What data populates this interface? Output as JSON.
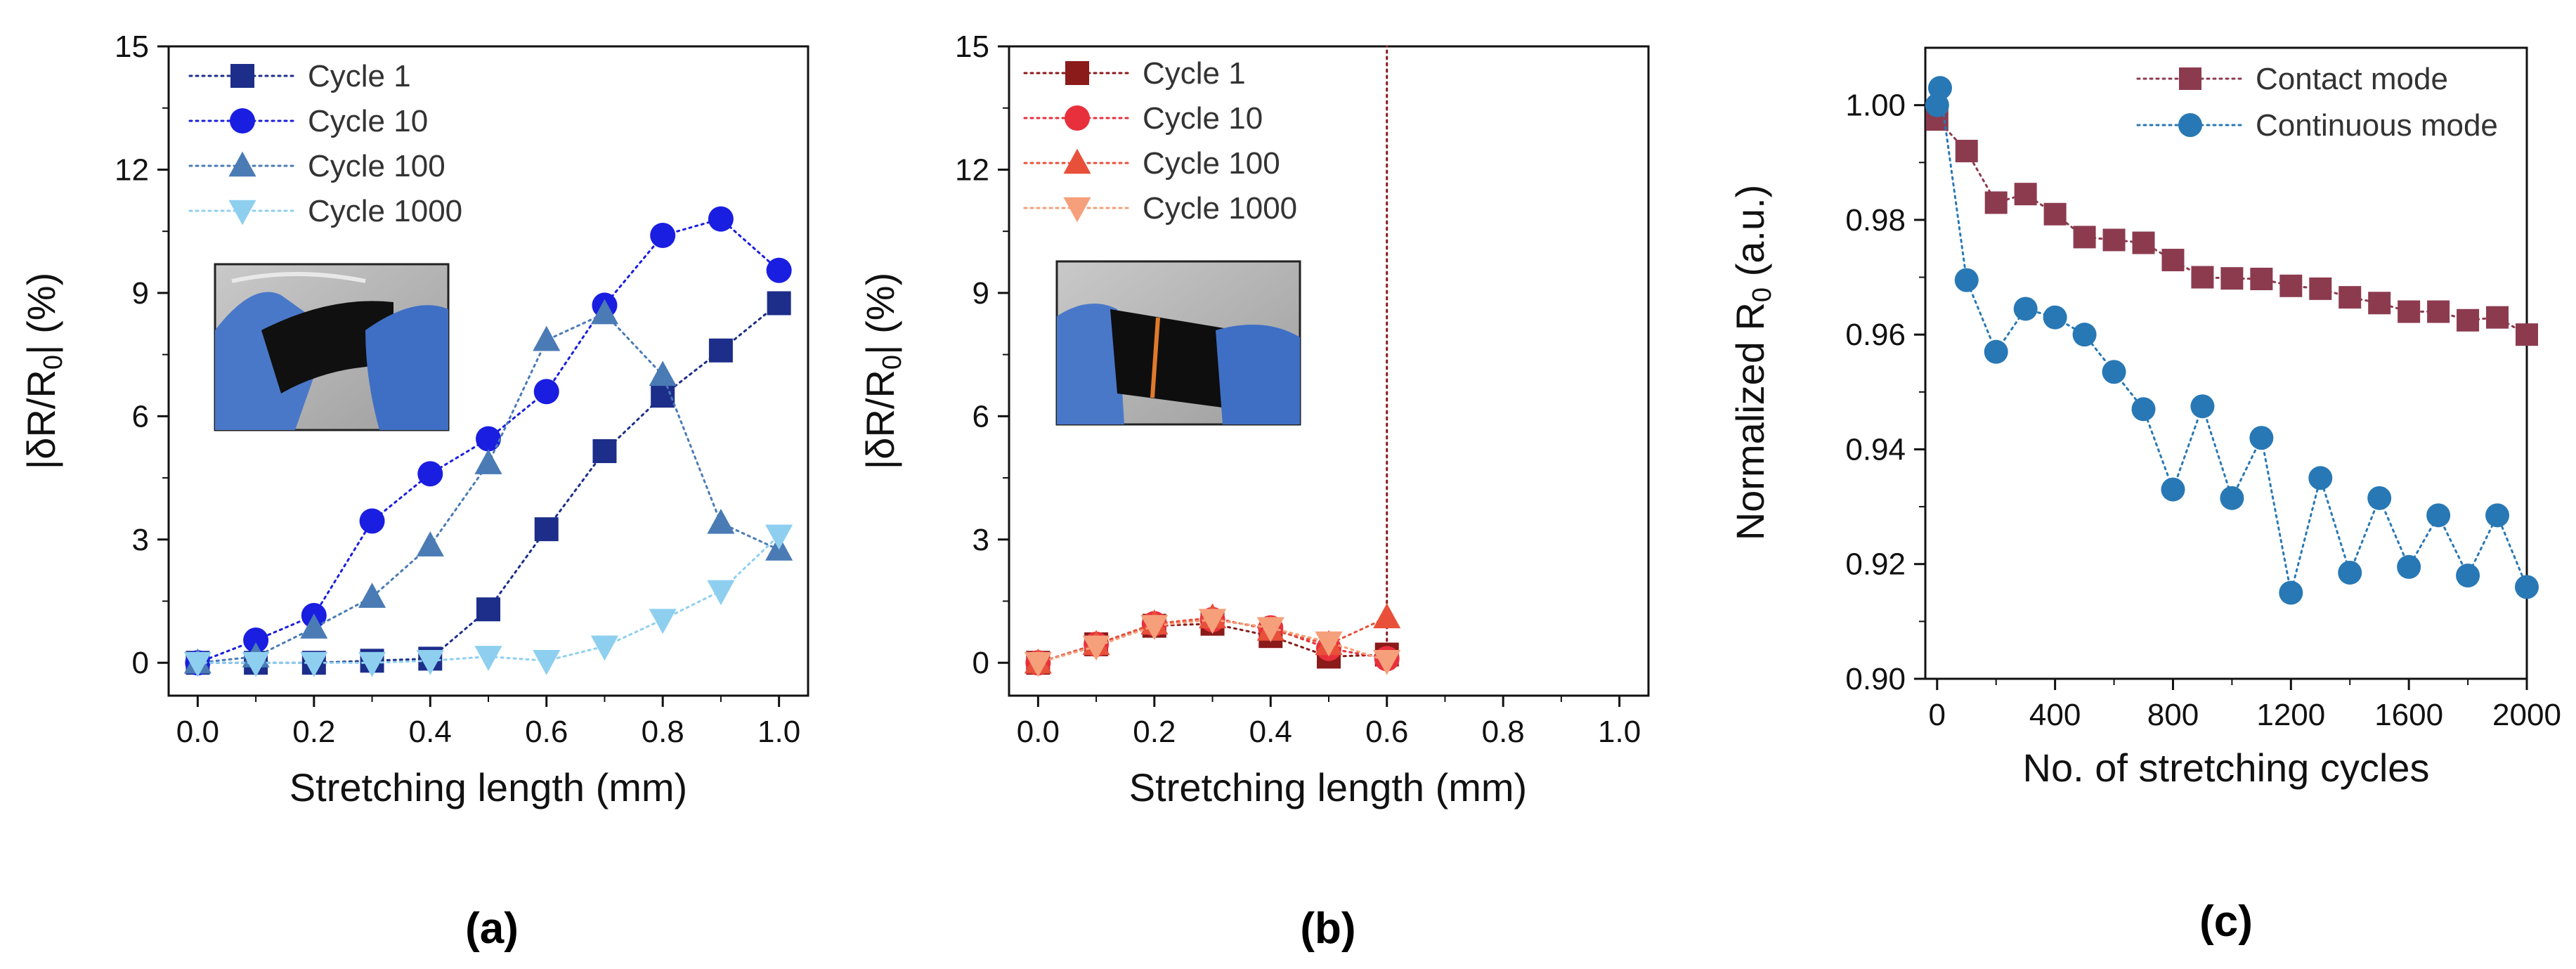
{
  "chart_data": [
    {
      "id": "a",
      "type": "line",
      "panel_label": "(a)",
      "title": "",
      "xlabel": "Stretching length (mm)",
      "ylabel_parts": [
        "|δR/R",
        "0",
        "| (%)"
      ],
      "xlim": [
        -0.05,
        1.05
      ],
      "ylim": [
        -0.8,
        15
      ],
      "xticks": [
        "0.0",
        "0.2",
        "0.4",
        "0.6",
        "0.8",
        "1.0"
      ],
      "xtick_values": [
        0,
        0.2,
        0.4,
        0.6,
        0.8,
        1.0
      ],
      "yticks": [
        "0",
        "3",
        "6",
        "9",
        "12",
        "15"
      ],
      "ytick_values": [
        0,
        3,
        6,
        9,
        12,
        15
      ],
      "legend_position": "top-left",
      "inset_photo": "finger-stretching-device-photo",
      "series": [
        {
          "name": "Cycle 1",
          "marker": "square",
          "color": "#1c2e8a",
          "x": [
            0,
            0.1,
            0.2,
            0.3,
            0.4,
            0.5,
            0.6,
            0.7,
            0.8,
            0.9,
            1.0
          ],
          "y": [
            0,
            0,
            0,
            0.05,
            0.1,
            1.3,
            3.25,
            5.15,
            6.5,
            7.6,
            8.75
          ]
        },
        {
          "name": "Cycle 10",
          "marker": "circle",
          "color": "#1a1ee0",
          "x": [
            0,
            0.1,
            0.2,
            0.3,
            0.4,
            0.5,
            0.6,
            0.7,
            0.8,
            0.9,
            1.0
          ],
          "y": [
            0,
            0.55,
            1.15,
            3.45,
            4.6,
            5.45,
            6.6,
            8.7,
            10.4,
            10.8,
            9.55
          ]
        },
        {
          "name": "Cycle 100",
          "marker": "triangle-up",
          "color": "#4a7bb5",
          "x": [
            0,
            0.1,
            0.2,
            0.3,
            0.4,
            0.5,
            0.6,
            0.7,
            0.8,
            0.9,
            1.0
          ],
          "y": [
            0,
            0.15,
            0.85,
            1.6,
            2.85,
            4.85,
            7.85,
            8.5,
            7.0,
            3.4,
            2.75
          ]
        },
        {
          "name": "Cycle 1000",
          "marker": "triangle-down",
          "color": "#8ecff0",
          "x": [
            0,
            0.1,
            0.2,
            0.3,
            0.4,
            0.5,
            0.6,
            0.7,
            0.8,
            0.9,
            1.0
          ],
          "y": [
            0,
            0,
            0,
            0,
            0.05,
            0.15,
            0.05,
            0.4,
            1.05,
            1.75,
            3.1
          ]
        }
      ]
    },
    {
      "id": "b",
      "type": "line",
      "panel_label": "(b)",
      "title": "",
      "xlabel": "Stretching length (mm)",
      "ylabel_parts": [
        "|δR/R",
        "0",
        "| (%)"
      ],
      "xlim": [
        -0.05,
        1.05
      ],
      "ylim": [
        -0.8,
        15
      ],
      "xticks": [
        "0.0",
        "0.2",
        "0.4",
        "0.6",
        "0.8",
        "1.0"
      ],
      "xtick_values": [
        0,
        0.2,
        0.4,
        0.6,
        0.8,
        1.0
      ],
      "yticks": [
        "0",
        "3",
        "6",
        "9",
        "12",
        "15"
      ],
      "ytick_values": [
        0,
        3,
        6,
        9,
        12,
        15
      ],
      "legend_position": "top-left",
      "inset_photo": "finger-stretching-device-photo",
      "series": [
        {
          "name": "Cycle 1",
          "marker": "square",
          "color": "#8b1a1a",
          "x": [
            0,
            0.1,
            0.2,
            0.3,
            0.4,
            0.5,
            0.6,
            0.6
          ],
          "y": [
            0,
            0.45,
            0.9,
            0.95,
            0.65,
            0.15,
            0.2,
            15
          ]
        },
        {
          "name": "Cycle 10",
          "marker": "circle",
          "color": "#e8303c",
          "x": [
            0,
            0.1,
            0.2,
            0.3,
            0.4,
            0.5,
            0.6
          ],
          "y": [
            0,
            0.45,
            0.95,
            1.05,
            0.85,
            0.35,
            0.1
          ]
        },
        {
          "name": "Cycle 100",
          "marker": "triangle-up",
          "color": "#e8503a",
          "x": [
            0,
            0.1,
            0.2,
            0.3,
            0.4,
            0.5,
            0.6
          ],
          "y": [
            0,
            0.45,
            0.95,
            1.1,
            0.8,
            0.45,
            1.1
          ]
        },
        {
          "name": "Cycle 1000",
          "marker": "triangle-down",
          "color": "#f5a07a",
          "x": [
            0,
            0.1,
            0.2,
            0.3,
            0.4,
            0.5,
            0.6
          ],
          "y": [
            0,
            0.4,
            0.9,
            1.05,
            0.85,
            0.5,
            0.05
          ]
        }
      ]
    },
    {
      "id": "c",
      "type": "line",
      "panel_label": "(c)",
      "title": "",
      "xlabel": "No. of stretching cycles",
      "ylabel_parts": [
        "Normalized R",
        "0",
        " (a.u.)"
      ],
      "xlim": [
        -40,
        2000
      ],
      "ylim": [
        0.9,
        1.01
      ],
      "xticks": [
        "0",
        "400",
        "800",
        "1200",
        "1600",
        "2000"
      ],
      "xtick_values": [
        0,
        400,
        800,
        1200,
        1600,
        2000
      ],
      "yticks": [
        "0.90",
        "0.92",
        "0.94",
        "0.96",
        "0.98",
        "1.00"
      ],
      "ytick_values": [
        0.9,
        0.92,
        0.94,
        0.96,
        0.98,
        1.0
      ],
      "legend_position": "top-right",
      "series": [
        {
          "name": "Contact mode",
          "marker": "square",
          "color": "#8c3b4f",
          "x": [
            0,
            100,
            200,
            300,
            400,
            500,
            600,
            700,
            800,
            900,
            1000,
            1100,
            1200,
            1300,
            1400,
            1500,
            1600,
            1700,
            1800,
            1900,
            2000
          ],
          "y": [
            0.9975,
            0.992,
            0.983,
            0.9845,
            0.981,
            0.977,
            0.9765,
            0.976,
            0.973,
            0.97,
            0.9698,
            0.9697,
            0.9685,
            0.968,
            0.9665,
            0.9655,
            0.964,
            0.964,
            0.9625,
            0.963,
            0.96
          ]
        },
        {
          "name": "Continuous mode",
          "marker": "circle",
          "color": "#2878b5",
          "x": [
            0,
            10,
            100,
            200,
            300,
            400,
            500,
            600,
            700,
            800,
            900,
            1000,
            1100,
            1200,
            1300,
            1400,
            1500,
            1600,
            1700,
            1800,
            1900,
            2000
          ],
          "y": [
            1.0,
            1.003,
            0.9695,
            0.957,
            0.9645,
            0.963,
            0.96,
            0.9535,
            0.947,
            0.933,
            0.9475,
            0.9315,
            0.942,
            0.915,
            0.935,
            0.9185,
            0.9315,
            0.9195,
            0.9285,
            0.918,
            0.9285,
            0.916
          ]
        }
      ]
    }
  ]
}
